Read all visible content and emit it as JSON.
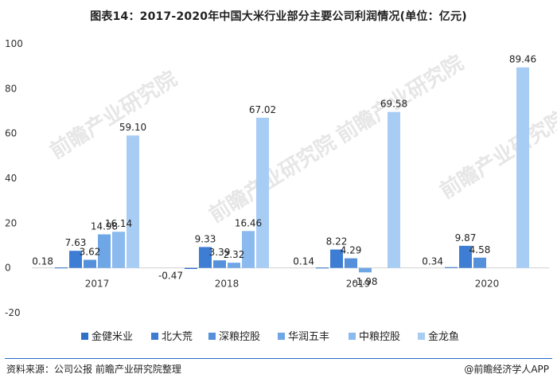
{
  "title": "图表14：2017-2020年中国大米行业部分主要公司利润情况(单位：亿元)",
  "source": "资料来源：公司公报 前瞻产业研究院整理",
  "brand": "@前瞻经济学人APP",
  "watermark": "前瞻产业研究院",
  "chart_data": {
    "type": "bar",
    "title": "图表14：2017-2020年中国大米行业部分主要公司利润情况(单位：亿元)",
    "xlabel": "",
    "ylabel": "",
    "ylim": [
      -20,
      100
    ],
    "yticks": [
      100,
      80,
      60,
      40,
      20,
      0,
      -20
    ],
    "grid": false,
    "legend_position": "bottom",
    "categories": [
      "2017",
      "2018",
      "2019",
      "2020"
    ],
    "series": [
      {
        "name": "金健米业",
        "color": "#2e6fc8",
        "values": [
          0.18,
          -0.47,
          0.14,
          0.34
        ],
        "labels": [
          "0.18",
          "-0.47",
          "0.14",
          "0.34"
        ]
      },
      {
        "name": "北大荒",
        "color": "#3d7dd3",
        "values": [
          7.63,
          9.33,
          8.22,
          9.87
        ],
        "labels": [
          "7.63",
          "9.33",
          "8.22",
          "9.87"
        ]
      },
      {
        "name": "深粮控股",
        "color": "#5590db",
        "values": [
          3.62,
          3.39,
          4.29,
          4.58
        ],
        "labels": [
          "3.62",
          "3.39",
          "4.29",
          "4.58"
        ]
      },
      {
        "name": "华润五丰",
        "color": "#6ea6e6",
        "values": [
          14.98,
          2.32,
          -1.98,
          null
        ],
        "labels": [
          "14.98",
          "2.32",
          "-1.98",
          ""
        ]
      },
      {
        "name": "中粮控股",
        "color": "#8bbaee",
        "values": [
          16.14,
          16.46,
          null,
          null
        ],
        "labels": [
          "16.14",
          "16.46",
          "",
          ""
        ]
      },
      {
        "name": "金龙鱼",
        "color": "#a8cdf4",
        "values": [
          59.1,
          67.02,
          69.58,
          89.46
        ],
        "labels": [
          "59.10",
          "67.02",
          "69.58",
          "89.46"
        ]
      }
    ]
  }
}
